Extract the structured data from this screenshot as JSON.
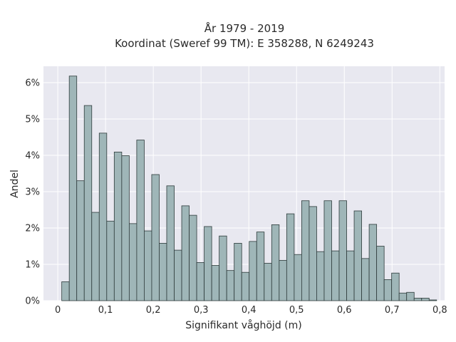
{
  "chart_data": {
    "type": "bar",
    "title": "År 1979 - 2019",
    "subtitle": "Koordinat (Sweref 99 TM): E 358288, N 6249243",
    "xlabel": "Signifikant våghöjd (m)",
    "ylabel": "Andel",
    "xlim": [
      -0.03,
      0.81
    ],
    "ylim": [
      0,
      0.0645
    ],
    "grid": true,
    "x_ticks": [
      0,
      0.1,
      0.2,
      0.3,
      0.4,
      0.5,
      0.6,
      0.7,
      0.8
    ],
    "x_tick_labels": [
      "0",
      "0,1",
      "0,2",
      "0,3",
      "0,4",
      "0,5",
      "0,6",
      "0,7",
      "0,8"
    ],
    "y_ticks": [
      0,
      0.01,
      0.02,
      0.03,
      0.04,
      0.05,
      0.06
    ],
    "y_tick_labels": [
      "0%",
      "1%",
      "2%",
      "3%",
      "4%",
      "5%",
      "6%"
    ],
    "bin_width": 0.0157,
    "bin_start": 0.0083,
    "values": [
      0.0052,
      0.0618,
      0.033,
      0.0537,
      0.0243,
      0.0461,
      0.0219,
      0.0409,
      0.0399,
      0.0212,
      0.0442,
      0.0192,
      0.0347,
      0.0158,
      0.0316,
      0.0139,
      0.0261,
      0.0235,
      0.0105,
      0.0204,
      0.0097,
      0.0178,
      0.0083,
      0.0158,
      0.0078,
      0.0163,
      0.0189,
      0.0103,
      0.0209,
      0.0111,
      0.0239,
      0.0127,
      0.0275,
      0.0259,
      0.0135,
      0.0275,
      0.0137,
      0.0275,
      0.0137,
      0.0247,
      0.0116,
      0.021,
      0.015,
      0.0058,
      0.0076,
      0.0021,
      0.0023,
      0.0007,
      0.0007,
      0.0002
    ]
  }
}
